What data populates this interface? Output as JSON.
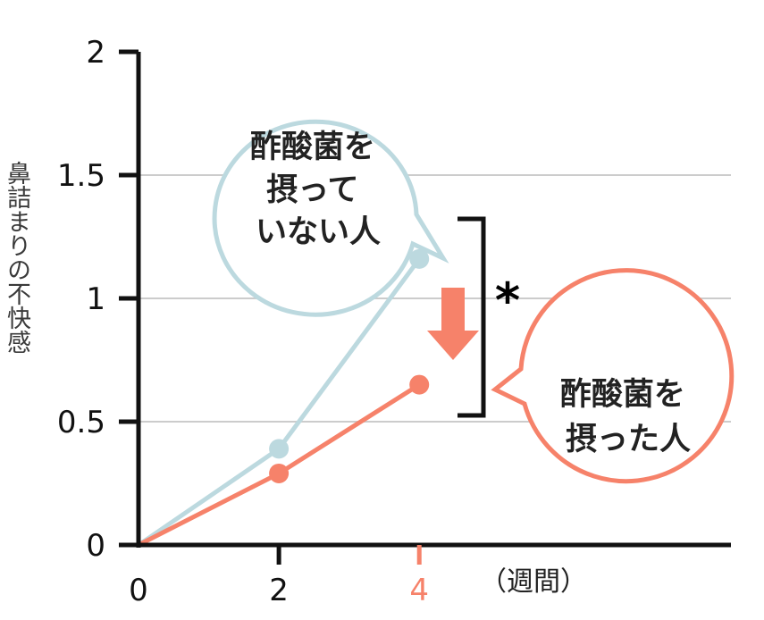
{
  "chart_data": {
    "type": "line",
    "ylabel": "鼻詰まりの不快感",
    "x_unit": "（週間）",
    "x": [
      0,
      2,
      4
    ],
    "x_ticks": [
      "0",
      "2",
      "4"
    ],
    "highlight_x_tick": "4",
    "y_ticks": [
      "0",
      "0.5",
      "1",
      "1.5",
      "2"
    ],
    "ylim": [
      0,
      2
    ],
    "grid": true,
    "series": [
      {
        "values": [
          0,
          0.39,
          1.16
        ],
        "color": "#bcd9df",
        "callout": [
          "酢酸菌を",
          "摂って",
          "いない人"
        ]
      },
      {
        "values": [
          0,
          0.29,
          0.65
        ],
        "color": "#f6826a",
        "callout": [
          "酢酸菌を",
          "摂った人"
        ]
      }
    ],
    "significance_mark": "*",
    "colors": {
      "axis": "#111111",
      "grid": "#cccccc",
      "arrow": "#f6826a",
      "bracket": "#111111"
    }
  }
}
